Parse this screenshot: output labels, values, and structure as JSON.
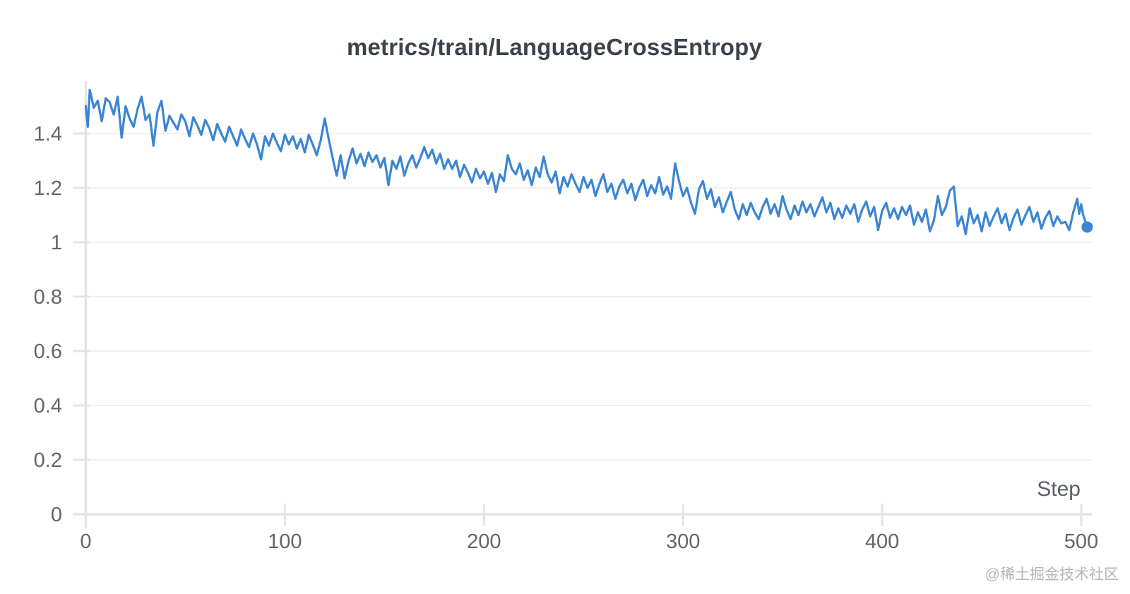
{
  "page": {
    "background": "#ffffff"
  },
  "watermark": {
    "text": "@稀土掘金技术社区",
    "color": "#b3b6bc"
  },
  "style": {
    "title_color": "#3c434e",
    "tick_label_color": "#626669",
    "grid_color": "#ececec",
    "axis_color": "#e4e4e4"
  },
  "chart_data": {
    "type": "line",
    "title": "metrics/train/LanguageCrossEntropy",
    "xlabel": "Step",
    "ylabel": "",
    "xlim": [
      0,
      505
    ],
    "ylim": [
      0,
      1.6
    ],
    "x_ticks": [
      0,
      100,
      200,
      300,
      400,
      500
    ],
    "x_tick_labels": [
      "0",
      "100",
      "200",
      "300",
      "400",
      "500"
    ],
    "y_ticks": [
      0,
      0.2,
      0.4,
      0.6,
      0.8,
      1,
      1.2,
      1.4
    ],
    "y_tick_labels": [
      "0",
      "0.2",
      "0.4",
      "0.6",
      "0.8",
      "1",
      "1.2",
      "1.4"
    ],
    "grid": "horizontal",
    "legend": "none",
    "line_color": "#3b86d2",
    "end_point": {
      "step": 503,
      "value": 1.056
    },
    "series": [
      {
        "name": "metrics/train/LanguageCrossEntropy",
        "points": [
          [
            0,
            1.5
          ],
          [
            1,
            1.425
          ],
          [
            2,
            1.56
          ],
          [
            4,
            1.495
          ],
          [
            6,
            1.52
          ],
          [
            8,
            1.445
          ],
          [
            10,
            1.53
          ],
          [
            12,
            1.515
          ],
          [
            14,
            1.47
          ],
          [
            16,
            1.535
          ],
          [
            18,
            1.385
          ],
          [
            20,
            1.5
          ],
          [
            22,
            1.455
          ],
          [
            24,
            1.425
          ],
          [
            26,
            1.49
          ],
          [
            28,
            1.535
          ],
          [
            30,
            1.45
          ],
          [
            32,
            1.47
          ],
          [
            34,
            1.355
          ],
          [
            36,
            1.48
          ],
          [
            38,
            1.52
          ],
          [
            40,
            1.41
          ],
          [
            42,
            1.465
          ],
          [
            44,
            1.44
          ],
          [
            46,
            1.415
          ],
          [
            48,
            1.47
          ],
          [
            50,
            1.445
          ],
          [
            52,
            1.39
          ],
          [
            54,
            1.46
          ],
          [
            56,
            1.43
          ],
          [
            58,
            1.395
          ],
          [
            60,
            1.45
          ],
          [
            62,
            1.42
          ],
          [
            64,
            1.375
          ],
          [
            66,
            1.435
          ],
          [
            68,
            1.4
          ],
          [
            70,
            1.37
          ],
          [
            72,
            1.425
          ],
          [
            74,
            1.39
          ],
          [
            76,
            1.355
          ],
          [
            78,
            1.415
          ],
          [
            80,
            1.38
          ],
          [
            82,
            1.35
          ],
          [
            84,
            1.4
          ],
          [
            86,
            1.36
          ],
          [
            88,
            1.305
          ],
          [
            90,
            1.39
          ],
          [
            92,
            1.355
          ],
          [
            94,
            1.4
          ],
          [
            96,
            1.365
          ],
          [
            98,
            1.335
          ],
          [
            100,
            1.395
          ],
          [
            102,
            1.36
          ],
          [
            104,
            1.39
          ],
          [
            106,
            1.345
          ],
          [
            108,
            1.38
          ],
          [
            110,
            1.33
          ],
          [
            112,
            1.395
          ],
          [
            114,
            1.36
          ],
          [
            116,
            1.32
          ],
          [
            118,
            1.375
          ],
          [
            120,
            1.455
          ],
          [
            122,
            1.38
          ],
          [
            124,
            1.31
          ],
          [
            126,
            1.245
          ],
          [
            128,
            1.32
          ],
          [
            130,
            1.235
          ],
          [
            132,
            1.3
          ],
          [
            134,
            1.345
          ],
          [
            136,
            1.29
          ],
          [
            138,
            1.325
          ],
          [
            140,
            1.28
          ],
          [
            142,
            1.33
          ],
          [
            144,
            1.295
          ],
          [
            146,
            1.32
          ],
          [
            148,
            1.275
          ],
          [
            150,
            1.31
          ],
          [
            152,
            1.21
          ],
          [
            154,
            1.3
          ],
          [
            156,
            1.27
          ],
          [
            158,
            1.315
          ],
          [
            160,
            1.245
          ],
          [
            162,
            1.29
          ],
          [
            164,
            1.32
          ],
          [
            166,
            1.275
          ],
          [
            168,
            1.31
          ],
          [
            170,
            1.35
          ],
          [
            172,
            1.31
          ],
          [
            174,
            1.34
          ],
          [
            176,
            1.29
          ],
          [
            178,
            1.325
          ],
          [
            180,
            1.27
          ],
          [
            182,
            1.305
          ],
          [
            184,
            1.27
          ],
          [
            186,
            1.3
          ],
          [
            188,
            1.24
          ],
          [
            190,
            1.285
          ],
          [
            192,
            1.255
          ],
          [
            194,
            1.22
          ],
          [
            196,
            1.27
          ],
          [
            198,
            1.235
          ],
          [
            200,
            1.26
          ],
          [
            202,
            1.215
          ],
          [
            204,
            1.255
          ],
          [
            206,
            1.185
          ],
          [
            208,
            1.25
          ],
          [
            210,
            1.225
          ],
          [
            212,
            1.32
          ],
          [
            214,
            1.27
          ],
          [
            216,
            1.25
          ],
          [
            218,
            1.29
          ],
          [
            220,
            1.23
          ],
          [
            222,
            1.265
          ],
          [
            224,
            1.21
          ],
          [
            226,
            1.275
          ],
          [
            228,
            1.24
          ],
          [
            230,
            1.315
          ],
          [
            232,
            1.25
          ],
          [
            234,
            1.22
          ],
          [
            236,
            1.26
          ],
          [
            238,
            1.18
          ],
          [
            240,
            1.24
          ],
          [
            242,
            1.205
          ],
          [
            244,
            1.25
          ],
          [
            246,
            1.215
          ],
          [
            248,
            1.185
          ],
          [
            250,
            1.24
          ],
          [
            252,
            1.2
          ],
          [
            254,
            1.23
          ],
          [
            256,
            1.17
          ],
          [
            258,
            1.215
          ],
          [
            260,
            1.25
          ],
          [
            262,
            1.185
          ],
          [
            264,
            1.215
          ],
          [
            266,
            1.16
          ],
          [
            268,
            1.205
          ],
          [
            270,
            1.23
          ],
          [
            272,
            1.18
          ],
          [
            274,
            1.215
          ],
          [
            276,
            1.155
          ],
          [
            278,
            1.2
          ],
          [
            280,
            1.23
          ],
          [
            282,
            1.17
          ],
          [
            284,
            1.21
          ],
          [
            286,
            1.18
          ],
          [
            288,
            1.24
          ],
          [
            290,
            1.175
          ],
          [
            292,
            1.205
          ],
          [
            294,
            1.16
          ],
          [
            296,
            1.29
          ],
          [
            298,
            1.225
          ],
          [
            300,
            1.17
          ],
          [
            302,
            1.2
          ],
          [
            304,
            1.145
          ],
          [
            306,
            1.105
          ],
          [
            308,
            1.195
          ],
          [
            310,
            1.225
          ],
          [
            312,
            1.16
          ],
          [
            314,
            1.195
          ],
          [
            316,
            1.13
          ],
          [
            318,
            1.165
          ],
          [
            320,
            1.11
          ],
          [
            322,
            1.15
          ],
          [
            324,
            1.185
          ],
          [
            326,
            1.12
          ],
          [
            328,
            1.085
          ],
          [
            330,
            1.14
          ],
          [
            332,
            1.1
          ],
          [
            334,
            1.145
          ],
          [
            336,
            1.11
          ],
          [
            338,
            1.085
          ],
          [
            340,
            1.13
          ],
          [
            342,
            1.16
          ],
          [
            344,
            1.105
          ],
          [
            346,
            1.14
          ],
          [
            348,
            1.095
          ],
          [
            350,
            1.17
          ],
          [
            352,
            1.12
          ],
          [
            354,
            1.085
          ],
          [
            356,
            1.135
          ],
          [
            358,
            1.1
          ],
          [
            360,
            1.15
          ],
          [
            362,
            1.11
          ],
          [
            364,
            1.14
          ],
          [
            366,
            1.095
          ],
          [
            368,
            1.13
          ],
          [
            370,
            1.165
          ],
          [
            372,
            1.11
          ],
          [
            374,
            1.145
          ],
          [
            376,
            1.085
          ],
          [
            378,
            1.125
          ],
          [
            380,
            1.09
          ],
          [
            382,
            1.135
          ],
          [
            384,
            1.105
          ],
          [
            386,
            1.14
          ],
          [
            388,
            1.075
          ],
          [
            390,
            1.12
          ],
          [
            392,
            1.15
          ],
          [
            394,
            1.095
          ],
          [
            396,
            1.13
          ],
          [
            398,
            1.045
          ],
          [
            400,
            1.115
          ],
          [
            402,
            1.145
          ],
          [
            404,
            1.09
          ],
          [
            406,
            1.125
          ],
          [
            408,
            1.085
          ],
          [
            410,
            1.13
          ],
          [
            412,
            1.1
          ],
          [
            414,
            1.135
          ],
          [
            416,
            1.065
          ],
          [
            418,
            1.11
          ],
          [
            420,
            1.075
          ],
          [
            422,
            1.12
          ],
          [
            424,
            1.04
          ],
          [
            426,
            1.08
          ],
          [
            428,
            1.17
          ],
          [
            430,
            1.1
          ],
          [
            432,
            1.13
          ],
          [
            434,
            1.19
          ],
          [
            436,
            1.205
          ],
          [
            438,
            1.06
          ],
          [
            440,
            1.095
          ],
          [
            442,
            1.03
          ],
          [
            444,
            1.125
          ],
          [
            446,
            1.07
          ],
          [
            448,
            1.1
          ],
          [
            450,
            1.04
          ],
          [
            452,
            1.11
          ],
          [
            454,
            1.06
          ],
          [
            456,
            1.095
          ],
          [
            458,
            1.125
          ],
          [
            460,
            1.07
          ],
          [
            462,
            1.105
          ],
          [
            464,
            1.045
          ],
          [
            466,
            1.09
          ],
          [
            468,
            1.12
          ],
          [
            470,
            1.065
          ],
          [
            472,
            1.1
          ],
          [
            474,
            1.13
          ],
          [
            476,
            1.075
          ],
          [
            478,
            1.11
          ],
          [
            480,
            1.05
          ],
          [
            482,
            1.09
          ],
          [
            484,
            1.115
          ],
          [
            486,
            1.06
          ],
          [
            488,
            1.095
          ],
          [
            490,
            1.07
          ],
          [
            492,
            1.075
          ],
          [
            494,
            1.045
          ],
          [
            496,
            1.11
          ],
          [
            498,
            1.16
          ],
          [
            499,
            1.105
          ],
          [
            500,
            1.14
          ],
          [
            501,
            1.1
          ],
          [
            503,
            1.056
          ]
        ]
      }
    ]
  }
}
